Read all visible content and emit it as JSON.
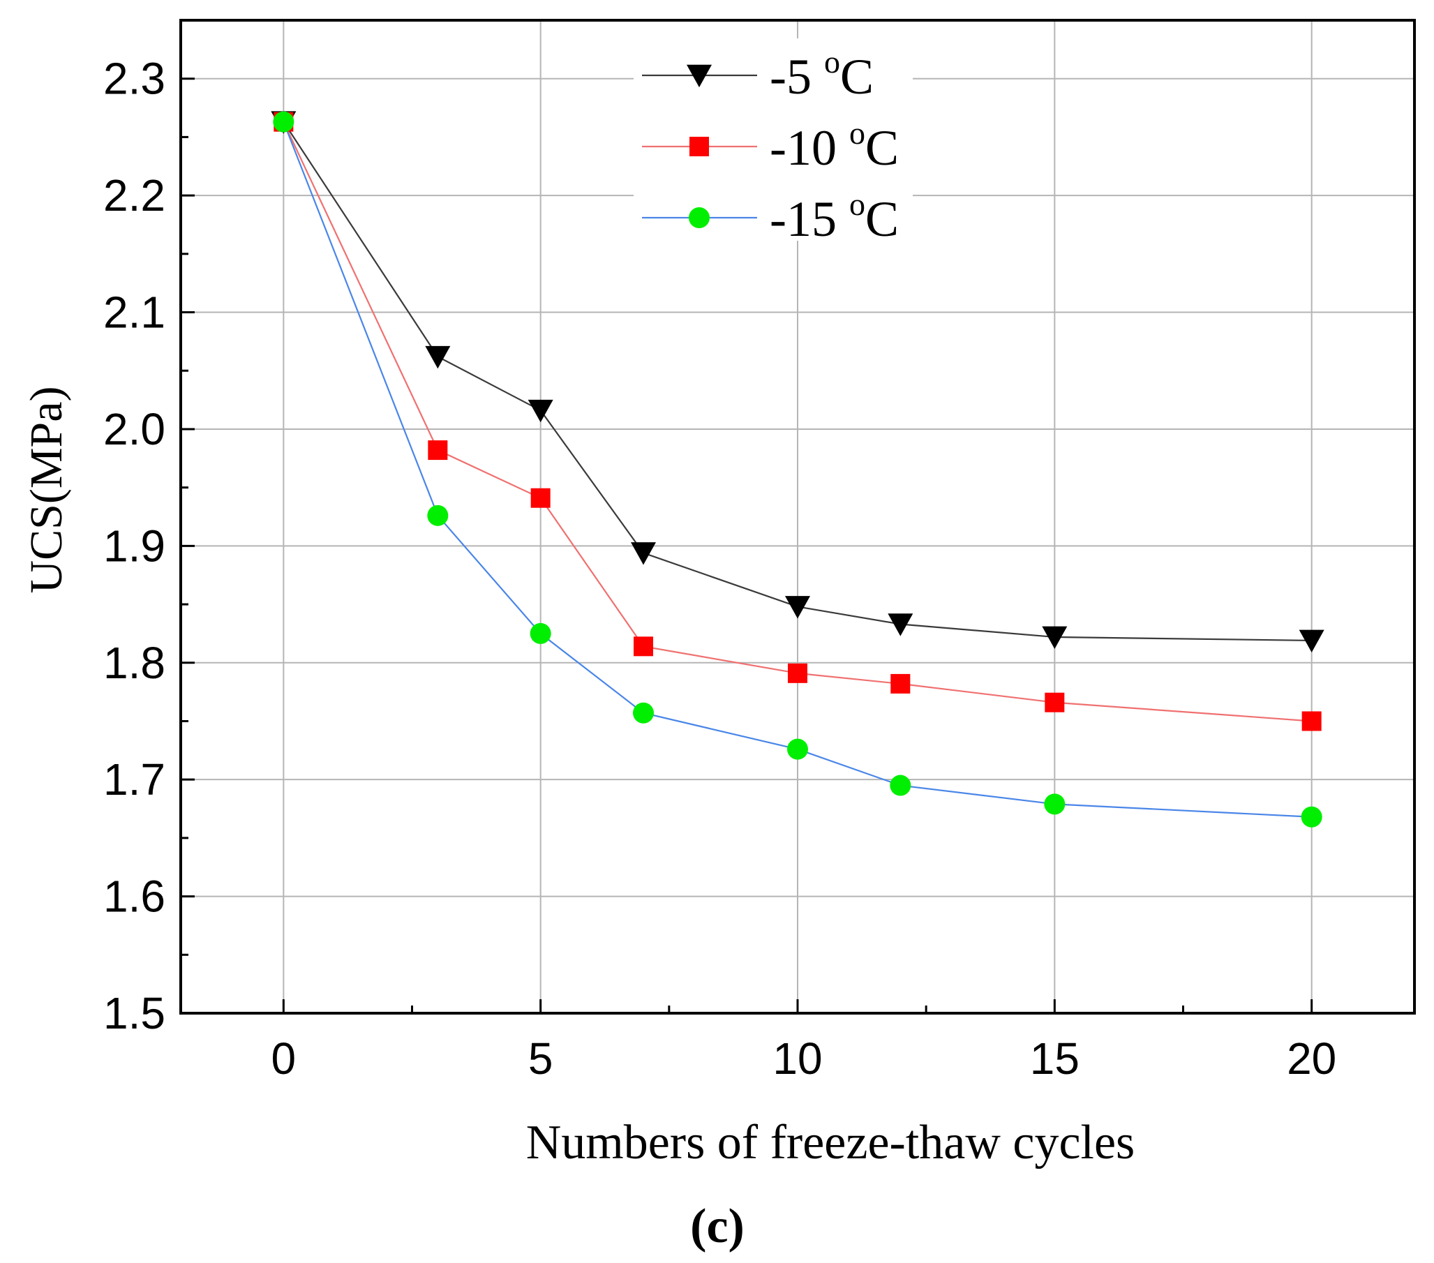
{
  "chart_data": {
    "type": "line",
    "title": "",
    "xlabel": "Numbers of freeze-thaw cycles",
    "ylabel": "UCS(MPa)",
    "panel_label": "(c)",
    "xlim": [
      -2,
      22
    ],
    "ylim": [
      1.5,
      2.35
    ],
    "xticks": [
      0,
      5,
      10,
      15,
      20
    ],
    "xtick_labels": [
      "0",
      "5",
      "10",
      "15",
      "20"
    ],
    "yticks": [
      1.5,
      1.6,
      1.7,
      1.8,
      1.9,
      2.0,
      2.1,
      2.2,
      2.3
    ],
    "ytick_labels": [
      "1.5",
      "1.6",
      "1.7",
      "1.8",
      "1.9",
      "2.0",
      "2.1",
      "2.2",
      "2.3"
    ],
    "x": [
      0,
      3,
      5,
      7,
      10,
      12,
      15,
      20
    ],
    "grid": true,
    "legend_position": "top-center",
    "series": [
      {
        "name": "-5 °C",
        "label_base": "-5 ",
        "label_sup": "o",
        "label_unit": "C",
        "marker": "triangle-down",
        "marker_color": "#000000",
        "line_color": "#3a3a3a",
        "values": [
          2.263,
          2.062,
          2.016,
          1.894,
          1.848,
          1.833,
          1.822,
          1.819
        ]
      },
      {
        "name": "-10 °C",
        "label_base": "-10 ",
        "label_sup": "o",
        "label_unit": "C",
        "marker": "square",
        "marker_color": "#ff0000",
        "line_color": "#f07070",
        "values": [
          2.263,
          1.982,
          1.941,
          1.814,
          1.791,
          1.782,
          1.766,
          1.75
        ]
      },
      {
        "name": "-15 °C",
        "label_base": "-15 ",
        "label_sup": "o",
        "label_unit": "C",
        "marker": "circle",
        "marker_color": "#00ee00",
        "line_color": "#4a86e8",
        "values": [
          2.263,
          1.926,
          1.825,
          1.757,
          1.726,
          1.695,
          1.679,
          1.668
        ]
      }
    ]
  }
}
